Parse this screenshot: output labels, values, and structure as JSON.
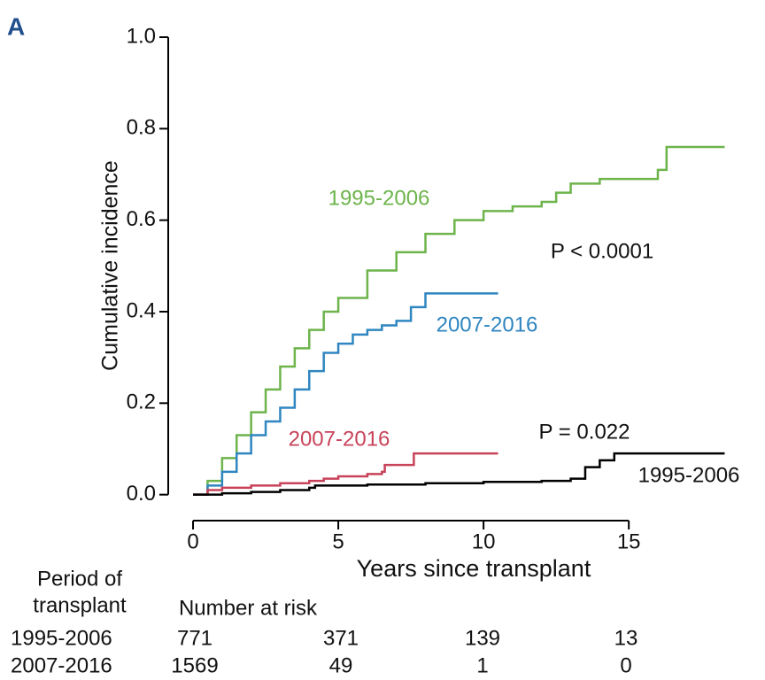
{
  "chart_data": {
    "type": "step",
    "panel_label": "A",
    "x_label": "Years since transplant",
    "y_label": "Cumulative incidence",
    "xlim": [
      -0.9,
      18.5
    ],
    "ylim": [
      -0.05,
      1.0
    ],
    "xticks": [
      0,
      5,
      10,
      15
    ],
    "yticks": [
      {
        "value": 0,
        "label": "0.0"
      },
      0.2,
      0.4,
      0.6,
      0.8,
      {
        "value": 1,
        "label": "1.0"
      }
    ],
    "series": [
      {
        "name": "1995-2006",
        "color": "#6db44b",
        "x": [
          0,
          0.5,
          1,
          1.5,
          2,
          2.5,
          3,
          3.5,
          4,
          4.5,
          5,
          6,
          7,
          8,
          9,
          10,
          11,
          12,
          12.5,
          13,
          14,
          15,
          16,
          16.3,
          18.3
        ],
        "values": [
          0,
          0.03,
          0.08,
          0.13,
          0.18,
          0.23,
          0.28,
          0.32,
          0.36,
          0.4,
          0.43,
          0.49,
          0.53,
          0.57,
          0.6,
          0.62,
          0.63,
          0.64,
          0.66,
          0.68,
          0.69,
          0.69,
          0.71,
          0.76,
          0.76
        ]
      },
      {
        "name": "2007-2016",
        "color": "#2f86c0",
        "x": [
          0,
          0.5,
          1,
          1.5,
          2,
          2.5,
          3,
          3.5,
          4,
          4.5,
          5,
          5.5,
          6,
          6.5,
          7,
          7.4,
          7.5,
          7.9,
          8,
          10.5
        ],
        "values": [
          0,
          0.02,
          0.05,
          0.09,
          0.13,
          0.16,
          0.19,
          0.23,
          0.27,
          0.31,
          0.33,
          0.35,
          0.36,
          0.37,
          0.38,
          0.38,
          0.41,
          0.41,
          0.44,
          0.44
        ]
      },
      {
        "name": "2007-2016",
        "color": "#c8435a",
        "x": [
          0,
          0.5,
          1,
          2,
          3,
          4,
          4.5,
          5,
          6,
          6.5,
          6.6,
          7.5,
          7.6,
          10.5
        ],
        "values": [
          0,
          0.01,
          0.015,
          0.02,
          0.025,
          0.03,
          0.035,
          0.04,
          0.045,
          0.05,
          0.065,
          0.065,
          0.09,
          0.09
        ]
      },
      {
        "name": "1995-2006",
        "color": "#000000",
        "x": [
          0,
          1,
          2,
          3,
          4,
          4.2,
          5,
          6,
          8,
          10,
          12,
          13,
          13.5,
          14,
          14.5,
          18.3
        ],
        "values": [
          0,
          0.003,
          0.006,
          0.01,
          0.015,
          0.02,
          0.02,
          0.022,
          0.025,
          0.028,
          0.03,
          0.035,
          0.06,
          0.075,
          0.09,
          0.09
        ]
      }
    ],
    "annotations": [
      "P < 0.0001",
      "P = 0.022"
    ],
    "risk_table": {
      "header": [
        "Period of",
        "transplant"
      ],
      "subheader": "Number at risk",
      "rows": [
        {
          "label": "1995-2006",
          "values": [
            771,
            371,
            139,
            13
          ]
        },
        {
          "label": "2007-2016",
          "values": [
            1569,
            49,
            1,
            0
          ]
        }
      ]
    }
  }
}
